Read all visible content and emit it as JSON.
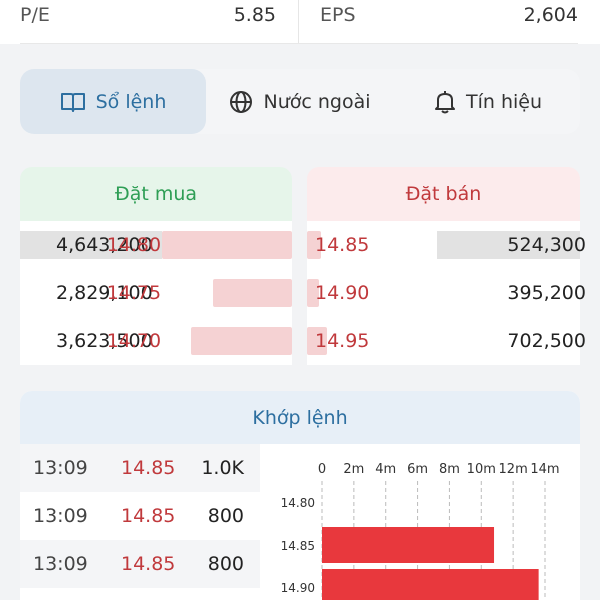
{
  "stats": {
    "pe_label": "P/E",
    "pe_value": "5.85",
    "eps_label": "EPS",
    "eps_value": "2,604"
  },
  "tabs": [
    {
      "label": "Sổ lệnh",
      "icon": "book-icon",
      "active": true
    },
    {
      "label": "Nước ngoài",
      "icon": "globe-icon",
      "active": false
    },
    {
      "label": "Tín hiệu",
      "icon": "bell-icon",
      "active": false
    }
  ],
  "order_book": {
    "buy_title": "Đặt mua",
    "sell_title": "Đặt bán",
    "buy": [
      {
        "volume": "4,643,200",
        "price": "14.80",
        "depth": 1.0
      },
      {
        "volume": "2,829,100",
        "price": "14.75",
        "depth": 0.61
      },
      {
        "volume": "3,623,500",
        "price": "14.70",
        "depth": 0.78
      }
    ],
    "sell": [
      {
        "price": "14.85",
        "volume": "524,300",
        "depth": 0.11
      },
      {
        "price": "14.90",
        "volume": "395,200",
        "depth": 0.09
      },
      {
        "price": "14.95",
        "volume": "702,500",
        "depth": 0.15
      }
    ],
    "colors": {
      "buy": "#2e9e55",
      "sell": "#c0393c"
    }
  },
  "matched": {
    "title": "Khớp lệnh",
    "rows": [
      {
        "time": "13:09",
        "price": "14.85",
        "volume": "1.0K"
      },
      {
        "time": "13:09",
        "price": "14.85",
        "volume": "800"
      },
      {
        "time": "13:09",
        "price": "14.85",
        "volume": "800"
      }
    ]
  },
  "chart_data": {
    "type": "bar",
    "orientation": "horizontal",
    "x_ticks": [
      "0",
      "2m",
      "4m",
      "6m",
      "8m",
      "10m",
      "12m",
      "14m"
    ],
    "xlim": [
      0,
      14
    ],
    "categories": [
      "14.80",
      "14.85",
      "14.90"
    ],
    "values": [
      0,
      10.8,
      13.6
    ],
    "bar_color": "#e8383d",
    "grid": "vertical-dashed"
  }
}
